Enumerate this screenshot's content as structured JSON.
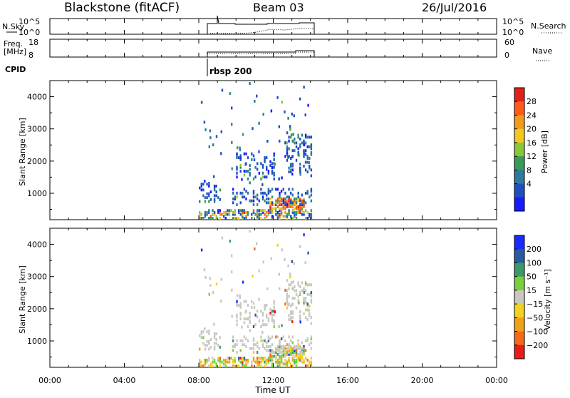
{
  "header": {
    "station": "Blackstone (fitACF)",
    "beam": "Beam 03",
    "date": "26/Jul/2016"
  },
  "status_panels": {
    "nsky_label": "N.Sky",
    "freq_label_1": "Freq.",
    "freq_label_2": "[MHz]",
    "cpid_label": "CPID",
    "nsearch_label": "N.Search",
    "nave_label": "Nave",
    "noise_ticks": [
      "10^5",
      "10^0"
    ],
    "freq_ticks": [
      "18",
      "8"
    ],
    "nave_ticks": [
      "60",
      "0"
    ],
    "cpid_name": "rbsp 200"
  },
  "chart_data": [
    {
      "type": "heatmap",
      "name": "power",
      "ylabel": "Slant Range [km]",
      "ylim": [
        180,
        4500
      ],
      "yticks": [
        1000,
        2000,
        3000,
        4000
      ],
      "xlim": [
        0,
        24
      ],
      "colorbar_label": "Power [dB]",
      "colorbar_ticks": [
        "4",
        "8",
        "12",
        "16",
        "20",
        "24",
        "28"
      ],
      "colors": [
        "#1a1aff",
        "#1f4fbf",
        "#2f7a9a",
        "#3a9a5a",
        "#8ac83a",
        "#f2c81e",
        "#f29a1a",
        "#ff5a1a",
        "#e0201a"
      ],
      "data_window": [
        8.0,
        14.0
      ],
      "blobs": [
        {
          "t0": 8.0,
          "t1": 14.0,
          "r0": 180,
          "r1": 480,
          "kind": "mixed"
        },
        {
          "t0": 11.8,
          "t1": 13.6,
          "r0": 480,
          "r1": 800,
          "kind": "hot"
        },
        {
          "t0": 8.0,
          "t1": 9.2,
          "r0": 700,
          "r1": 1300,
          "kind": "low"
        },
        {
          "t0": 9.8,
          "t1": 14.0,
          "r0": 600,
          "r1": 1100,
          "kind": "low"
        },
        {
          "t0": 12.6,
          "t1": 14.0,
          "r0": 1500,
          "r1": 2800,
          "kind": "low"
        },
        {
          "t0": 10.0,
          "t1": 12.0,
          "r0": 1400,
          "r1": 2200,
          "kind": "low"
        }
      ]
    },
    {
      "type": "heatmap",
      "name": "velocity",
      "ylabel": "Slant Range [km]",
      "xlabel": "Time UT",
      "ylim": [
        180,
        4500
      ],
      "yticks": [
        1000,
        2000,
        3000,
        4000
      ],
      "xlim": [
        0,
        24
      ],
      "xticks": [
        "00:00",
        "04:00",
        "08:00",
        "12:00",
        "16:00",
        "20:00",
        "00:00"
      ],
      "colorbar_label": "Velocity [m s⁻¹]",
      "colorbar_ticks": [
        "200",
        "100",
        "50",
        "15",
        "−15",
        "−50",
        "−100",
        "−200"
      ],
      "colors": [
        "#1a2aff",
        "#2a5aa0",
        "#3a9a6a",
        "#7ad03a",
        "#c8c8c0",
        "#f2d21e",
        "#f2a01a",
        "#f26a1a",
        "#e81a1a"
      ],
      "data_window": [
        8.0,
        14.0
      ]
    }
  ]
}
